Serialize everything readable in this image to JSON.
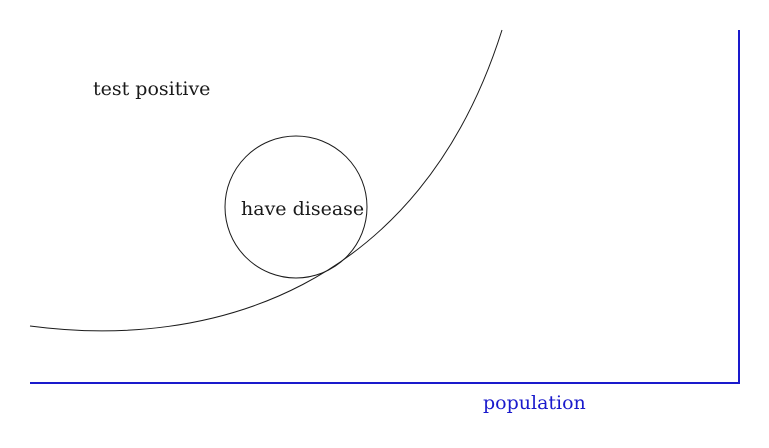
{
  "labels": {
    "test_positive": "test positive",
    "have_disease": "have disease",
    "population": "population"
  },
  "colors": {
    "ink": "#1a1a1a",
    "population_boundary": "#1a1acc",
    "background": "#ffffff"
  }
}
